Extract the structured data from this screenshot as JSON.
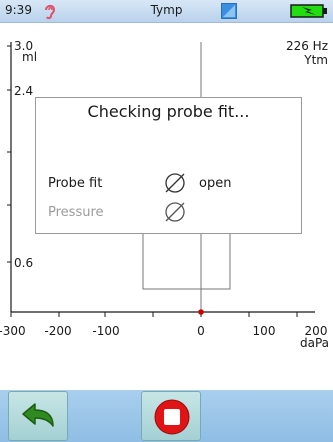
{
  "status_bar": {
    "time": "9:39",
    "title": "Tymp",
    "icons": [
      "ear-icon",
      "screen-icon",
      "battery-charging-icon"
    ],
    "colors": {
      "ear": "#e0506a",
      "battery": "#22dd11"
    }
  },
  "plot": {
    "frequency": "226 Hz",
    "measure": "Ytm",
    "y_axis_unit": "ml",
    "y_ticks": [
      "3.0",
      "2.4",
      "0.6"
    ],
    "x_ticks": [
      "-300",
      "-200",
      "-100",
      "0",
      "100",
      "200"
    ],
    "x_axis_unit": "daPa",
    "pressure_marker_color": "#cc0000"
  },
  "dialog": {
    "title": "Checking probe fit...",
    "rows": [
      {
        "label": "Probe fit",
        "status_icon": "empty-set-icon",
        "value": "open"
      },
      {
        "label": "Pressure",
        "status_icon": "empty-set-icon",
        "value": ""
      }
    ]
  },
  "toolbar": {
    "buttons": [
      {
        "icon": "back-arrow-icon",
        "color": "#2f8a1f"
      },
      {
        "icon": "stop-icon",
        "color": "#e01414"
      }
    ]
  }
}
